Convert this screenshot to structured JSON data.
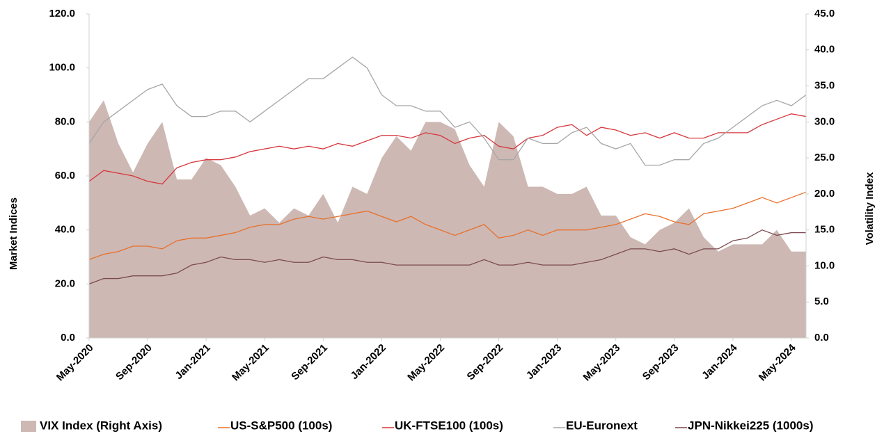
{
  "chart_data": {
    "type": "line",
    "y_label": "Market Indices",
    "y2_label": "Volatility Index",
    "categories": [
      "May-2020",
      null,
      null,
      null,
      "Sep-2020",
      null,
      null,
      null,
      "Jan-2021",
      null,
      null,
      null,
      "May-2021",
      null,
      null,
      null,
      "Sep-2021",
      null,
      null,
      null,
      "Jan-2022",
      null,
      null,
      null,
      "May-2022",
      null,
      null,
      null,
      "Sep-2022",
      null,
      null,
      null,
      "Jan-2023",
      null,
      null,
      null,
      "May-2023",
      null,
      null,
      null,
      "Sep-2023",
      null,
      null,
      null,
      "Jan-2024",
      null,
      null,
      null,
      "May-2024",
      null
    ],
    "ylim": [
      0,
      120
    ],
    "yticks": [
      {
        "value": 0,
        "label": "0.0"
      },
      {
        "value": 20,
        "label": "20.0"
      },
      {
        "value": 40,
        "label": "40.0"
      },
      {
        "value": 60,
        "label": "60.0"
      },
      {
        "value": 80,
        "label": "80.0"
      },
      {
        "value": 100,
        "label": "100.0"
      },
      {
        "value": 120,
        "label": "120.0"
      }
    ],
    "y2lim": [
      0,
      45
    ],
    "y2ticks": [
      {
        "value": 0,
        "label": "0.0"
      },
      {
        "value": 5,
        "label": "5.0"
      },
      {
        "value": 10,
        "label": "10.0"
      },
      {
        "value": 15,
        "label": "15.0"
      },
      {
        "value": 20,
        "label": "20.0"
      },
      {
        "value": 25,
        "label": "25.0"
      },
      {
        "value": 30,
        "label": "30.0"
      },
      {
        "value": 35,
        "label": "35.0"
      },
      {
        "value": 40,
        "label": "40.0"
      },
      {
        "value": 45,
        "label": "45.0"
      }
    ],
    "legend": "bottom",
    "series": [
      {
        "name": "VIX Index (Right Axis)",
        "color": "#cdb8b4",
        "axis": "y2",
        "kind": "area",
        "values": [
          30,
          33,
          27,
          23,
          27,
          30,
          22,
          22,
          25,
          24,
          21,
          17,
          18,
          16,
          18,
          17,
          20,
          16,
          21,
          20,
          25,
          28,
          26,
          30,
          30,
          29,
          24,
          21,
          30,
          28,
          21,
          21,
          20,
          20,
          21,
          17,
          17,
          14,
          13,
          15,
          16,
          18,
          14,
          12,
          13,
          13,
          13,
          15,
          12,
          12
        ]
      },
      {
        "name": "US-S&P500 (100s)",
        "color": "#e8702a",
        "values": [
          29,
          31,
          32,
          34,
          34,
          33,
          36,
          37,
          37,
          38,
          39,
          41,
          42,
          42,
          44,
          45,
          44,
          45,
          46,
          47,
          45,
          43,
          45,
          42,
          40,
          38,
          40,
          42,
          37,
          38,
          40,
          38,
          40,
          40,
          40,
          41,
          42,
          44,
          46,
          45,
          43,
          42,
          46,
          47,
          48,
          50,
          52,
          50,
          52,
          54
        ]
      },
      {
        "name": "UK-FTSE100 (100s)",
        "color": "#d6363c",
        "values": [
          58,
          62,
          61,
          60,
          58,
          57,
          63,
          65,
          66,
          66,
          67,
          69,
          70,
          71,
          70,
          71,
          70,
          72,
          71,
          73,
          75,
          75,
          74,
          76,
          75,
          72,
          74,
          75,
          71,
          70,
          74,
          75,
          78,
          79,
          75,
          78,
          77,
          75,
          76,
          74,
          76,
          74,
          74,
          76,
          76,
          76,
          79,
          81,
          83,
          82
        ]
      },
      {
        "name": "EU-Euronext",
        "color": "#a6a6a6",
        "values": [
          72,
          80,
          84,
          88,
          92,
          94,
          86,
          82,
          82,
          84,
          84,
          80,
          84,
          88,
          92,
          96,
          96,
          100,
          104,
          100,
          90,
          86,
          86,
          84,
          84,
          78,
          80,
          74,
          66,
          66,
          74,
          72,
          72,
          76,
          78,
          72,
          70,
          72,
          64,
          64,
          66,
          66,
          72,
          74,
          78,
          82,
          86,
          88,
          86,
          90
        ]
      },
      {
        "name": "JPN-Nikkei225 (1000s)",
        "color": "#7b4a4f",
        "values": [
          20,
          22,
          22,
          23,
          23,
          23,
          24,
          27,
          28,
          30,
          29,
          29,
          28,
          29,
          28,
          28,
          30,
          29,
          29,
          28,
          28,
          27,
          27,
          27,
          27,
          27,
          27,
          29,
          27,
          27,
          28,
          27,
          27,
          27,
          28,
          29,
          31,
          33,
          33,
          32,
          33,
          31,
          33,
          33,
          36,
          37,
          40,
          38,
          39,
          39
        ]
      }
    ]
  }
}
